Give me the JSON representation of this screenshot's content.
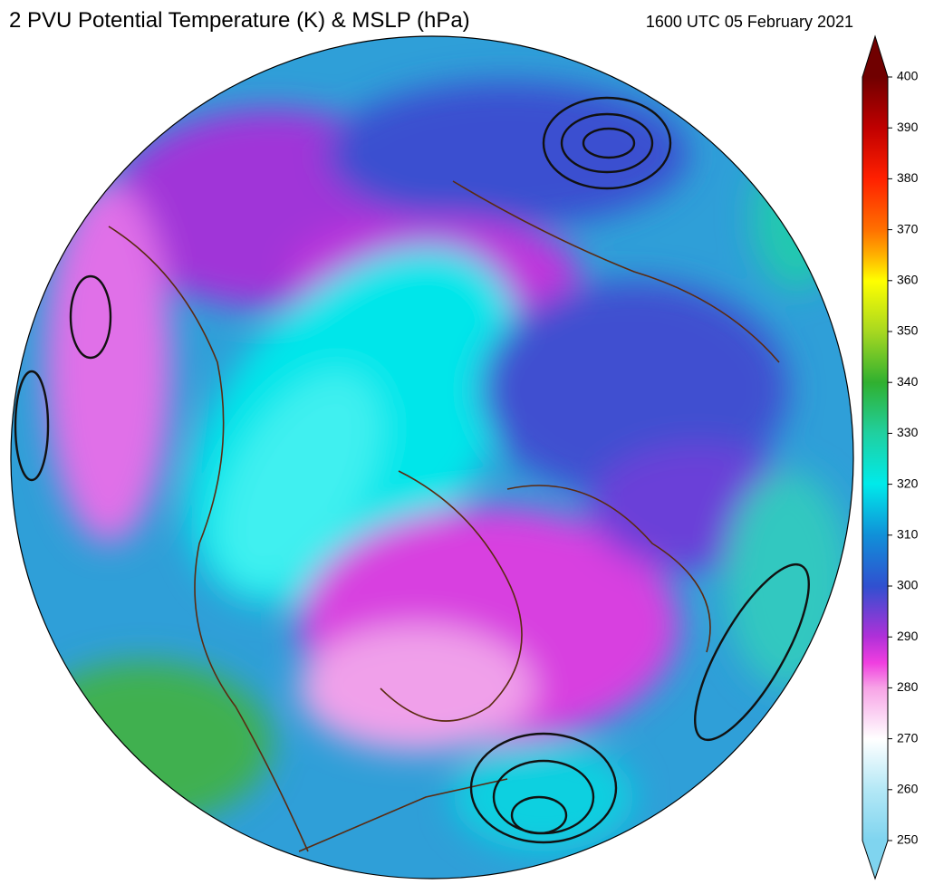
{
  "header": {
    "title": "2 PVU Potential Temperature (K) & MSLP (hPa)",
    "date": "1600 UTC 05 February 2021"
  },
  "colorbar": {
    "lim": [
      250,
      400
    ],
    "ticks": [
      250,
      260,
      270,
      280,
      290,
      300,
      310,
      320,
      330,
      340,
      350,
      360,
      370,
      380,
      390,
      400
    ]
  }
}
